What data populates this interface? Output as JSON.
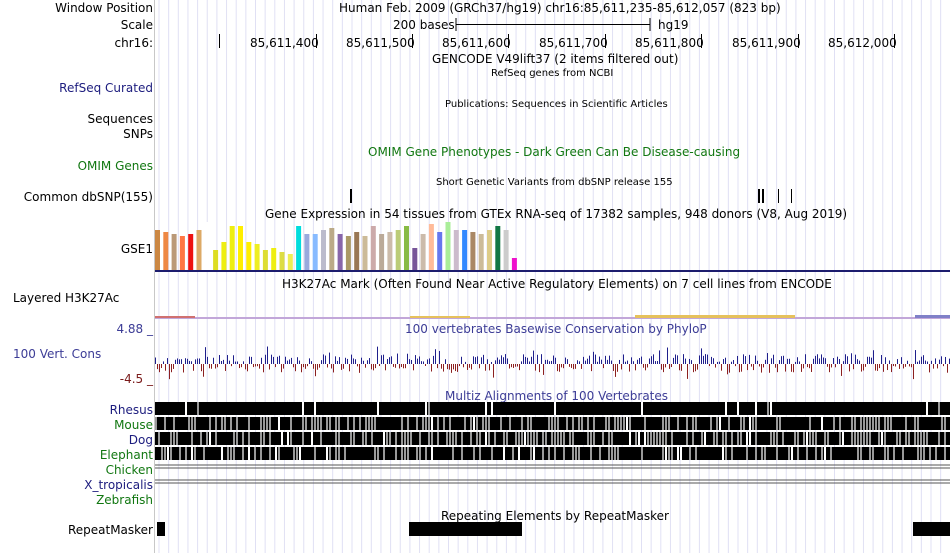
{
  "header": {
    "window_position_label": "Window Position",
    "window_position_value": "Human Feb. 2009 (GRCh37/hg19)   chr16:85,611,235-85,612,057 (823 bp)",
    "scale_label": "Scale",
    "scale_value": "200 bases",
    "scale_assembly": "hg19",
    "chrom_label": "chr16:",
    "ticks": [
      "85,611,400",
      "85,611,500",
      "85,611,600",
      "85,611,700",
      "85,611,800",
      "85,611,900",
      "85,612,000"
    ]
  },
  "tracks": {
    "gencode_title": "GENCODE V49lift37 (2 items filtered out)",
    "refseq_title": "RefSeq genes from NCBI",
    "refseq_label": "RefSeq Curated",
    "publications_title": "Publications: Sequences in Scientific Articles",
    "sequences_label": "Sequences",
    "snps_label": "SNPs",
    "omim_title": "OMIM Gene Phenotypes - Dark Green Can Be Disease-causing",
    "omim_label": "OMIM Genes",
    "dbsnp_title": "Short Genetic Variants from dbSNP release 155",
    "dbsnp_label": "Common dbSNP(155)",
    "gtex_title": "Gene Expression in 54 tissues from GTEx RNA-seq of 17382 samples, 948 donors (V8, Aug 2019)",
    "gtex_label": "GSE1",
    "h3k27ac_title": "H3K27Ac Mark (Often Found Near Active Regulatory Elements) on 7 cell lines from ENCODE",
    "h3k27ac_label": "Layered H3K27Ac",
    "cons_title": "100 vertebrates Basewise Conservation by PhyloP",
    "cons_label": "100 Vert. Cons",
    "cons_max": "4.88 _",
    "cons_min": "-4.5 _",
    "multiz_title": "Multiz Alignments of 100 Vertebrates",
    "species": [
      {
        "name": "Rhesus",
        "color": "#1c1c7e"
      },
      {
        "name": "Mouse",
        "color": "#117711"
      },
      {
        "name": "Dog",
        "color": "#1c1c7e"
      },
      {
        "name": "Elephant",
        "color": "#117711"
      },
      {
        "name": "Chicken",
        "color": "#117711"
      },
      {
        "name": "X_tropicalis",
        "color": "#1c1c7e"
      },
      {
        "name": "Zebrafish",
        "color": "#117711"
      }
    ],
    "repeat_title": "Repeating Elements by RepeatMasker",
    "repeat_label": "RepeatMasker"
  }
}
